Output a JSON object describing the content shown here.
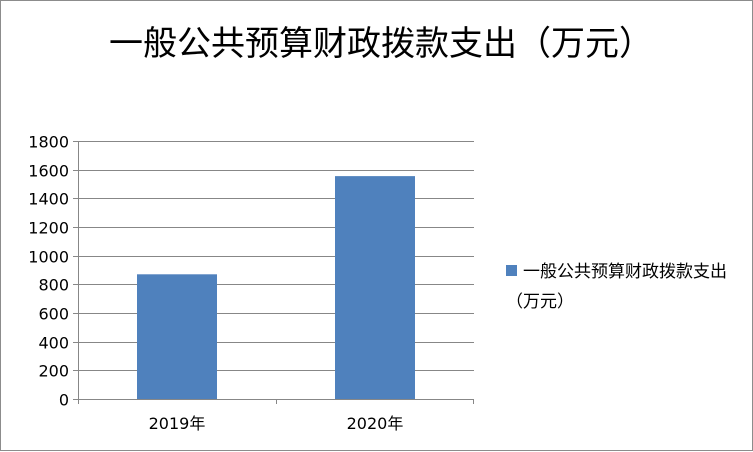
{
  "chart_data": {
    "type": "bar",
    "title": "一般公共预算财政拨款支出（万元）",
    "categories": [
      "2019年",
      "2020年"
    ],
    "series": [
      {
        "name": "一般公共预算财政拨款支出（万元）",
        "values": [
          870,
          1555
        ],
        "color": "#4f81bd"
      }
    ],
    "ylim": [
      0,
      1800
    ],
    "yticks": [
      0,
      200,
      400,
      600,
      800,
      1000,
      1200,
      1400,
      1600,
      1800
    ],
    "grid": true,
    "legend_position": "right"
  }
}
